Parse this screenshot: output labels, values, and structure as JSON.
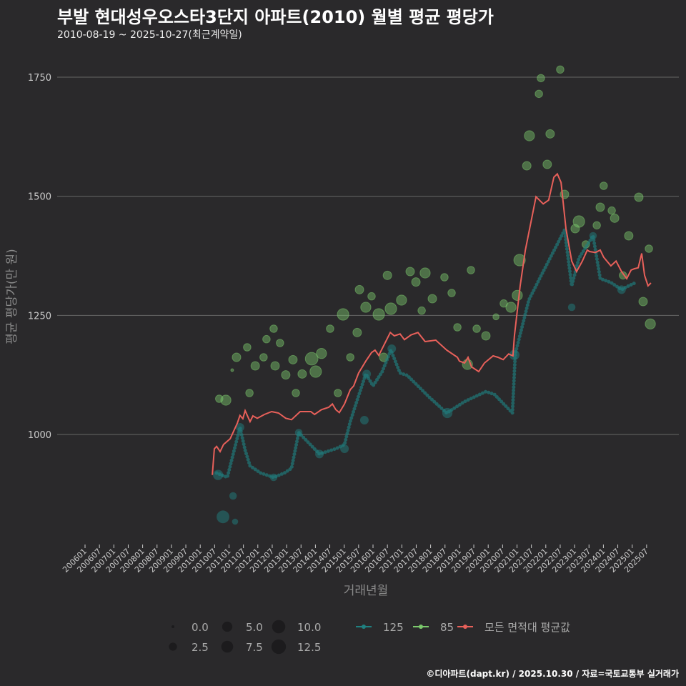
{
  "title": "부발 현대성우오스타3단지 아파트(2010) 월별 평균 평당가",
  "subtitle": "2010-08-19 ~ 2025-10-27(최근계약일)",
  "footer": "©디아파트(dapt.kr) / 2025.10.30 / 자료=국토교통부 실거래가",
  "colors": {
    "bg": "#2a292b",
    "s125": "#1f8080",
    "s85": "#7bc86c",
    "avg": "#e8605a",
    "grid": "#666666"
  },
  "chart_data": {
    "type": "line+scatter",
    "title": "부발 현대성우오스타3단지 아파트(2010) 월별 평균 평당가",
    "xlabel": "거래년월",
    "ylabel": "평균 평당가(만 원)",
    "ylim": [
      760,
      1800
    ],
    "xlim": [
      2005.85,
      2026.1
    ],
    "yticks": [
      1000,
      1250,
      1500,
      1750
    ],
    "ytick_labels": [
      "1000",
      "1250",
      "1500",
      "1750"
    ],
    "xtick_labels": [
      "200601",
      "200607",
      "200701",
      "200707",
      "200801",
      "200807",
      "200901",
      "200907",
      "201001",
      "201007",
      "201101",
      "201107",
      "201201",
      "201207",
      "201301",
      "201307",
      "201401",
      "201407",
      "201501",
      "201507",
      "201601",
      "201607",
      "201701",
      "201707",
      "201801",
      "201807",
      "201901",
      "201907",
      "202001",
      "202007",
      "202101",
      "202107",
      "202201",
      "202207",
      "202301",
      "202307",
      "202401",
      "202407",
      "202501",
      "202507"
    ],
    "legend": {
      "size_title": "",
      "sizes": [
        {
          "v": 0,
          "label": "0.0"
        },
        {
          "v": 2.5,
          "label": "2.5"
        },
        {
          "v": 5,
          "label": "5.0"
        },
        {
          "v": 7.5,
          "label": "7.5"
        },
        {
          "v": 10,
          "label": "10.0"
        },
        {
          "v": 12.5,
          "label": "12.5"
        }
      ],
      "series": [
        "125",
        "85",
        "모든 면적대 평균값"
      ],
      "placement": "bottom"
    },
    "avg_line": [
      [
        2010.42,
        915
      ],
      [
        2010.49,
        970
      ],
      [
        2010.57,
        975
      ],
      [
        2010.69,
        964
      ],
      [
        2010.81,
        979
      ],
      [
        2011.04,
        991
      ],
      [
        2011.29,
        1024
      ],
      [
        2011.38,
        1040
      ],
      [
        2011.48,
        1033
      ],
      [
        2011.56,
        1050
      ],
      [
        2011.73,
        1027
      ],
      [
        2011.83,
        1039
      ],
      [
        2011.98,
        1034
      ],
      [
        2012.23,
        1042
      ],
      [
        2012.48,
        1048
      ],
      [
        2012.72,
        1045
      ],
      [
        2012.97,
        1034
      ],
      [
        2013.17,
        1031
      ],
      [
        2013.47,
        1048
      ],
      [
        2013.84,
        1048
      ],
      [
        2013.97,
        1042
      ],
      [
        2014.21,
        1052
      ],
      [
        2014.46,
        1057
      ],
      [
        2014.59,
        1064
      ],
      [
        2014.71,
        1052
      ],
      [
        2014.83,
        1046
      ],
      [
        2015.01,
        1064
      ],
      [
        2015.21,
        1094
      ],
      [
        2015.33,
        1102
      ],
      [
        2015.5,
        1129
      ],
      [
        2015.75,
        1154
      ],
      [
        2015.95,
        1172
      ],
      [
        2016.07,
        1177
      ],
      [
        2016.2,
        1166
      ],
      [
        2016.35,
        1184
      ],
      [
        2016.6,
        1214
      ],
      [
        2016.74,
        1207
      ],
      [
        2016.94,
        1211
      ],
      [
        2017.09,
        1199
      ],
      [
        2017.32,
        1209
      ],
      [
        2017.56,
        1214
      ],
      [
        2017.81,
        1195
      ],
      [
        2018.18,
        1198
      ],
      [
        2018.56,
        1177
      ],
      [
        2018.93,
        1162
      ],
      [
        2019.0,
        1154
      ],
      [
        2019.18,
        1150
      ],
      [
        2019.3,
        1162
      ],
      [
        2019.42,
        1142
      ],
      [
        2019.67,
        1132
      ],
      [
        2019.87,
        1150
      ],
      [
        2020.17,
        1165
      ],
      [
        2020.34,
        1162
      ],
      [
        2020.52,
        1157
      ],
      [
        2020.71,
        1169
      ],
      [
        2020.86,
        1165
      ],
      [
        2020.91,
        1207
      ],
      [
        2021.11,
        1312
      ],
      [
        2021.29,
        1387
      ],
      [
        2021.66,
        1499
      ],
      [
        2021.91,
        1484
      ],
      [
        2022.1,
        1492
      ],
      [
        2022.28,
        1540
      ],
      [
        2022.4,
        1547
      ],
      [
        2022.53,
        1529
      ],
      [
        2022.7,
        1432
      ],
      [
        2022.9,
        1364
      ],
      [
        2023.07,
        1342
      ],
      [
        2023.27,
        1364
      ],
      [
        2023.44,
        1387
      ],
      [
        2023.52,
        1384
      ],
      [
        2023.72,
        1382
      ],
      [
        2023.89,
        1387
      ],
      [
        2024.01,
        1372
      ],
      [
        2024.26,
        1354
      ],
      [
        2024.44,
        1364
      ],
      [
        2024.63,
        1342
      ],
      [
        2024.81,
        1327
      ],
      [
        2024.96,
        1345
      ],
      [
        2025.08,
        1348
      ],
      [
        2025.21,
        1350
      ],
      [
        2025.33,
        1380
      ],
      [
        2025.43,
        1334
      ],
      [
        2025.55,
        1312
      ],
      [
        2025.65,
        1318
      ]
    ],
    "s125_line": [
      [
        2010.57,
        919
      ],
      [
        2010.94,
        910
      ],
      [
        2011.38,
        1015
      ],
      [
        2011.56,
        967
      ],
      [
        2011.73,
        934
      ],
      [
        2012.1,
        919
      ],
      [
        2012.55,
        910
      ],
      [
        2012.92,
        919
      ],
      [
        2013.17,
        929
      ],
      [
        2013.42,
        1004
      ],
      [
        2014.14,
        959
      ],
      [
        2014.71,
        970
      ],
      [
        2015.01,
        979
      ],
      [
        2015.21,
        1027
      ],
      [
        2015.45,
        1072
      ],
      [
        2015.75,
        1127
      ],
      [
        2016.0,
        1102
      ],
      [
        2016.32,
        1132
      ],
      [
        2016.62,
        1177
      ],
      [
        2016.94,
        1129
      ],
      [
        2017.19,
        1124
      ],
      [
        2017.94,
        1079
      ],
      [
        2018.56,
        1045
      ],
      [
        2019.18,
        1069
      ],
      [
        2019.92,
        1090
      ],
      [
        2020.22,
        1084
      ],
      [
        2020.84,
        1045
      ],
      [
        2020.94,
        1169
      ],
      [
        2021.41,
        1282
      ],
      [
        2021.91,
        1342
      ],
      [
        2022.65,
        1429
      ],
      [
        2022.9,
        1312
      ],
      [
        2023.15,
        1370
      ],
      [
        2023.64,
        1417
      ],
      [
        2023.89,
        1327
      ],
      [
        2024.26,
        1319
      ],
      [
        2024.63,
        1304
      ],
      [
        2024.88,
        1312
      ],
      [
        2025.13,
        1319
      ]
    ],
    "s125_points": [
      [
        2010.79,
        827,
        9
      ],
      [
        2010.62,
        915,
        5
      ],
      [
        2011.14,
        871,
        2
      ],
      [
        2011.21,
        817,
        1
      ],
      [
        2011.38,
        1015,
        3
      ],
      [
        2015.78,
        1127,
        3
      ],
      [
        2015.7,
        1030,
        3
      ],
      [
        2016.65,
        1180,
        3
      ],
      [
        2018.58,
        1045,
        5
      ],
      [
        2020.91,
        1167,
        5
      ],
      [
        2022.9,
        1267,
        2
      ],
      [
        2023.64,
        1417,
        2
      ],
      [
        2024.63,
        1304,
        3
      ],
      [
        2012.55,
        910,
        2
      ],
      [
        2013.42,
        1004,
        2
      ],
      [
        2014.14,
        959,
        3
      ],
      [
        2015.01,
        970,
        3
      ]
    ],
    "s85_points": [
      [
        2010.66,
        1075,
        2
      ],
      [
        2010.89,
        1072,
        5
      ],
      [
        2011.11,
        1135,
        0
      ],
      [
        2011.26,
        1162,
        3
      ],
      [
        2011.63,
        1183,
        2
      ],
      [
        2011.71,
        1087,
        2
      ],
      [
        2011.91,
        1144,
        3
      ],
      [
        2012.2,
        1162,
        2
      ],
      [
        2012.3,
        1200,
        2
      ],
      [
        2012.55,
        1222,
        2
      ],
      [
        2012.6,
        1144,
        3
      ],
      [
        2012.77,
        1192,
        2
      ],
      [
        2012.97,
        1125,
        3
      ],
      [
        2013.22,
        1157,
        3
      ],
      [
        2013.32,
        1087,
        2
      ],
      [
        2013.54,
        1127,
        3
      ],
      [
        2013.87,
        1159,
        9
      ],
      [
        2014.01,
        1132,
        7
      ],
      [
        2014.21,
        1170,
        5
      ],
      [
        2014.51,
        1222,
        2
      ],
      [
        2014.78,
        1087,
        2
      ],
      [
        2014.96,
        1252,
        7
      ],
      [
        2015.21,
        1162,
        2
      ],
      [
        2015.45,
        1214,
        3
      ],
      [
        2015.53,
        1304,
        3
      ],
      [
        2015.75,
        1267,
        5
      ],
      [
        2015.95,
        1290,
        2
      ],
      [
        2016.2,
        1252,
        7
      ],
      [
        2016.37,
        1162,
        3
      ],
      [
        2016.5,
        1334,
        3
      ],
      [
        2016.62,
        1264,
        7
      ],
      [
        2016.99,
        1282,
        5
      ],
      [
        2017.29,
        1342,
        3
      ],
      [
        2017.49,
        1320,
        3
      ],
      [
        2017.69,
        1260,
        2
      ],
      [
        2017.81,
        1339,
        5
      ],
      [
        2018.06,
        1285,
        3
      ],
      [
        2018.48,
        1330,
        2
      ],
      [
        2018.73,
        1297,
        2
      ],
      [
        2018.93,
        1225,
        2
      ],
      [
        2019.28,
        1147,
        5
      ],
      [
        2019.4,
        1345,
        2
      ],
      [
        2019.6,
        1222,
        2
      ],
      [
        2019.92,
        1207,
        3
      ],
      [
        2020.27,
        1247,
        1
      ],
      [
        2020.54,
        1275,
        2
      ],
      [
        2020.79,
        1267,
        5
      ],
      [
        2021.01,
        1292,
        5
      ],
      [
        2021.09,
        1366,
        7
      ],
      [
        2021.34,
        1564,
        3
      ],
      [
        2021.43,
        1627,
        5
      ],
      [
        2021.76,
        1715,
        2
      ],
      [
        2021.83,
        1748,
        2
      ],
      [
        2022.05,
        1567,
        3
      ],
      [
        2022.15,
        1631,
        3
      ],
      [
        2022.5,
        1766,
        2
      ],
      [
        2022.65,
        1504,
        3
      ],
      [
        2023.02,
        1432,
        3
      ],
      [
        2023.15,
        1447,
        7
      ],
      [
        2023.39,
        1399,
        2
      ],
      [
        2023.77,
        1439,
        2
      ],
      [
        2023.89,
        1477,
        3
      ],
      [
        2024.01,
        1522,
        2
      ],
      [
        2024.29,
        1470,
        2
      ],
      [
        2024.39,
        1454,
        3
      ],
      [
        2024.68,
        1334,
        2
      ],
      [
        2024.88,
        1417,
        3
      ],
      [
        2025.23,
        1498,
        3
      ],
      [
        2025.38,
        1279,
        3
      ],
      [
        2025.58,
        1390,
        2
      ],
      [
        2025.63,
        1232,
        5
      ]
    ]
  }
}
